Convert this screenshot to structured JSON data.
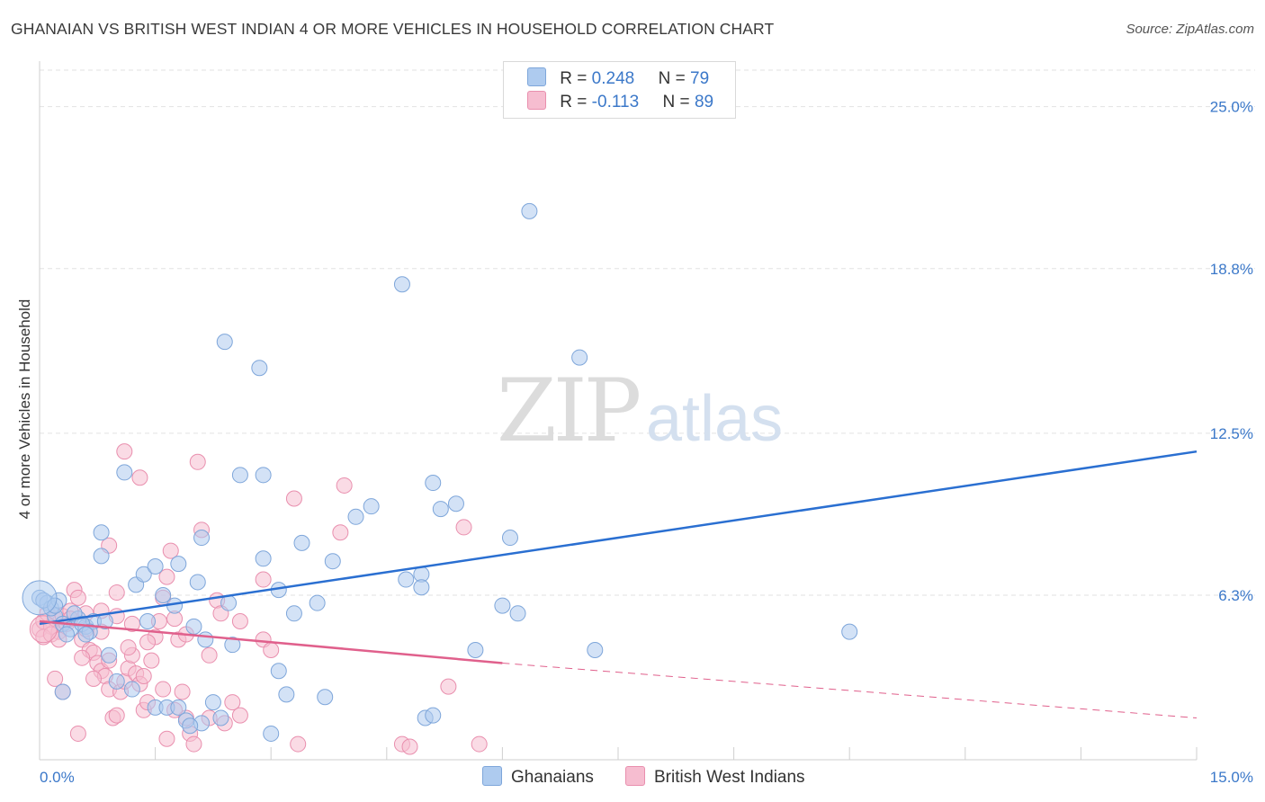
{
  "title": "GHANAIAN VS BRITISH WEST INDIAN 4 OR MORE VEHICLES IN HOUSEHOLD CORRELATION CHART",
  "source": "Source: ZipAtlas.com",
  "watermark": {
    "zip": "ZIP",
    "atlas": "atlas"
  },
  "legend": {
    "rows": [
      {
        "r_label": "R =",
        "r_value": "0.248",
        "n_label": "N =",
        "n_value": "79"
      },
      {
        "r_label": "R =",
        "r_value": "-0.113",
        "n_label": "N =",
        "n_value": "89"
      }
    ]
  },
  "bottom_legend": [
    "Ghanaians",
    "British West Indians"
  ],
  "colors": {
    "blue_fill": "#aecbef",
    "blue_stroke": "#7ea6da",
    "blue_line": "#2a6fd1",
    "pink_fill": "#f6bdd0",
    "pink_stroke": "#e98fae",
    "pink_line": "#e0608c",
    "tick_text": "#3b78c9",
    "grid": "#e2e2e2"
  },
  "chart_data": {
    "type": "scatter",
    "title": "GHANAIAN VS BRITISH WEST INDIAN 4 OR MORE VEHICLES IN HOUSEHOLD CORRELATION CHART",
    "xlabel": "",
    "ylabel": "4 or more Vehicles in Household",
    "xlim": [
      0,
      15
    ],
    "ylim": [
      0,
      26.4
    ],
    "y_ticks": [
      6.3,
      12.5,
      18.8,
      25.0
    ],
    "y_tick_labels": [
      "6.3%",
      "12.5%",
      "18.8%",
      "25.0%"
    ],
    "x_tick_labels": [
      "0.0%",
      "15.0%"
    ],
    "series": [
      {
        "name": "Ghanaians",
        "R": 0.248,
        "N": 79,
        "trend": {
          "x0": 0,
          "y0": 5.2,
          "x1": 15,
          "y1": 11.8
        },
        "points": [
          [
            0.0,
            6.2
          ],
          [
            0.1,
            6.0
          ],
          [
            0.2,
            5.5
          ],
          [
            0.3,
            5.2
          ],
          [
            0.4,
            5.0
          ],
          [
            0.35,
            4.8
          ],
          [
            0.5,
            5.4
          ],
          [
            0.6,
            5.1
          ],
          [
            0.7,
            5.3
          ],
          [
            0.15,
            5.8
          ],
          [
            0.25,
            6.1
          ],
          [
            0.45,
            5.6
          ],
          [
            0.55,
            5.2
          ],
          [
            0.65,
            4.9
          ],
          [
            0.85,
            5.3
          ],
          [
            0.3,
            2.6
          ],
          [
            1.0,
            3.0
          ],
          [
            1.2,
            2.7
          ],
          [
            0.9,
            4.0
          ],
          [
            1.5,
            2.0
          ],
          [
            1.65,
            2.0
          ],
          [
            1.8,
            2.0
          ],
          [
            1.9,
            1.5
          ],
          [
            2.1,
            1.4
          ],
          [
            2.25,
            2.2
          ],
          [
            2.35,
            1.6
          ],
          [
            3.2,
            2.5
          ],
          [
            3.7,
            2.4
          ],
          [
            5.0,
            1.6
          ],
          [
            5.1,
            1.7
          ],
          [
            0.8,
            7.8
          ],
          [
            1.1,
            11.0
          ],
          [
            1.25,
            6.7
          ],
          [
            1.35,
            7.1
          ],
          [
            1.5,
            7.4
          ],
          [
            1.6,
            6.3
          ],
          [
            1.75,
            5.9
          ],
          [
            2.0,
            5.1
          ],
          [
            2.05,
            6.8
          ],
          [
            2.1,
            8.5
          ],
          [
            2.15,
            4.6
          ],
          [
            2.45,
            6.0
          ],
          [
            2.5,
            4.4
          ],
          [
            2.9,
            7.7
          ],
          [
            3.1,
            6.5
          ],
          [
            3.3,
            5.6
          ],
          [
            3.4,
            8.3
          ],
          [
            3.6,
            6.0
          ],
          [
            3.8,
            7.6
          ],
          [
            4.1,
            9.3
          ],
          [
            4.3,
            9.7
          ],
          [
            4.75,
            6.9
          ],
          [
            4.95,
            7.1
          ],
          [
            5.1,
            10.6
          ],
          [
            5.2,
            9.6
          ],
          [
            5.4,
            9.8
          ],
          [
            6.0,
            5.9
          ],
          [
            6.1,
            8.5
          ],
          [
            6.2,
            5.6
          ],
          [
            7.2,
            4.2
          ],
          [
            10.5,
            4.9
          ],
          [
            1.8,
            7.5
          ],
          [
            2.4,
            16.0
          ],
          [
            2.85,
            15.0
          ],
          [
            4.7,
            18.2
          ],
          [
            6.35,
            21.0
          ],
          [
            7.0,
            15.4
          ],
          [
            2.9,
            10.9
          ],
          [
            2.6,
            10.9
          ],
          [
            0.8,
            8.7
          ],
          [
            0.05,
            6.1
          ],
          [
            0.2,
            5.9
          ],
          [
            0.6,
            4.8
          ],
          [
            1.4,
            5.3
          ],
          [
            1.95,
            1.3
          ],
          [
            3.0,
            1.0
          ],
          [
            3.1,
            3.4
          ],
          [
            4.95,
            6.6
          ],
          [
            5.65,
            4.2
          ]
        ]
      },
      {
        "name": "British West Indians",
        "R": -0.113,
        "N": 89,
        "trend": {
          "x0": 0,
          "y0": 5.3,
          "x1": 6.0,
          "y1": 3.7
        },
        "trend_dashed": {
          "x0": 6.0,
          "y0": 3.7,
          "x1": 15,
          "y1": 1.6
        },
        "points": [
          [
            0.0,
            5.0
          ],
          [
            0.05,
            5.3
          ],
          [
            0.1,
            5.6
          ],
          [
            0.15,
            5.1
          ],
          [
            0.2,
            5.4
          ],
          [
            0.25,
            4.9
          ],
          [
            0.3,
            5.5
          ],
          [
            0.35,
            5.2
          ],
          [
            0.4,
            5.7
          ],
          [
            0.45,
            6.5
          ],
          [
            0.5,
            6.2
          ],
          [
            0.55,
            4.6
          ],
          [
            0.6,
            5.0
          ],
          [
            0.65,
            4.2
          ],
          [
            0.7,
            4.1
          ],
          [
            0.75,
            3.7
          ],
          [
            0.8,
            3.4
          ],
          [
            0.85,
            3.2
          ],
          [
            0.9,
            2.7
          ],
          [
            0.95,
            1.6
          ],
          [
            1.0,
            1.7
          ],
          [
            1.05,
            2.6
          ],
          [
            1.1,
            3.0
          ],
          [
            1.15,
            3.5
          ],
          [
            1.2,
            4.0
          ],
          [
            1.25,
            3.3
          ],
          [
            1.3,
            2.9
          ],
          [
            1.35,
            1.9
          ],
          [
            1.4,
            2.2
          ],
          [
            1.45,
            3.8
          ],
          [
            1.5,
            4.7
          ],
          [
            1.55,
            5.3
          ],
          [
            1.6,
            6.2
          ],
          [
            1.65,
            7.0
          ],
          [
            1.7,
            8.0
          ],
          [
            1.75,
            5.4
          ],
          [
            1.8,
            4.6
          ],
          [
            1.85,
            2.6
          ],
          [
            1.9,
            1.6
          ],
          [
            1.95,
            1.0
          ],
          [
            2.0,
            0.6
          ],
          [
            2.05,
            11.4
          ],
          [
            2.1,
            8.8
          ],
          [
            2.2,
            4.0
          ],
          [
            2.3,
            6.1
          ],
          [
            2.4,
            1.4
          ],
          [
            2.5,
            2.2
          ],
          [
            2.9,
            4.6
          ],
          [
            3.0,
            4.2
          ],
          [
            3.3,
            10.0
          ],
          [
            3.9,
            8.7
          ],
          [
            3.95,
            10.5
          ],
          [
            4.7,
            0.6
          ],
          [
            5.5,
            8.9
          ],
          [
            5.7,
            0.6
          ],
          [
            1.1,
            11.8
          ],
          [
            1.3,
            10.8
          ],
          [
            0.9,
            8.2
          ],
          [
            1.0,
            6.4
          ],
          [
            1.2,
            5.2
          ],
          [
            0.2,
            3.1
          ],
          [
            0.3,
            2.6
          ],
          [
            0.5,
            1.0
          ],
          [
            0.55,
            3.9
          ],
          [
            0.7,
            3.1
          ],
          [
            0.8,
            4.9
          ],
          [
            0.9,
            3.8
          ],
          [
            1.15,
            4.3
          ],
          [
            1.35,
            3.2
          ],
          [
            1.6,
            2.7
          ],
          [
            1.75,
            1.9
          ],
          [
            1.9,
            4.8
          ],
          [
            2.2,
            1.6
          ],
          [
            2.35,
            5.6
          ],
          [
            2.6,
            1.7
          ],
          [
            2.9,
            6.9
          ],
          [
            2.6,
            5.3
          ],
          [
            3.35,
            0.6
          ],
          [
            5.3,
            2.8
          ],
          [
            4.8,
            0.5
          ],
          [
            0.05,
            4.7
          ],
          [
            0.15,
            4.8
          ],
          [
            0.25,
            4.6
          ],
          [
            0.4,
            5.4
          ],
          [
            0.6,
            5.6
          ],
          [
            0.8,
            5.7
          ],
          [
            1.0,
            5.5
          ],
          [
            1.4,
            4.5
          ],
          [
            1.65,
            0.8
          ]
        ]
      }
    ]
  }
}
